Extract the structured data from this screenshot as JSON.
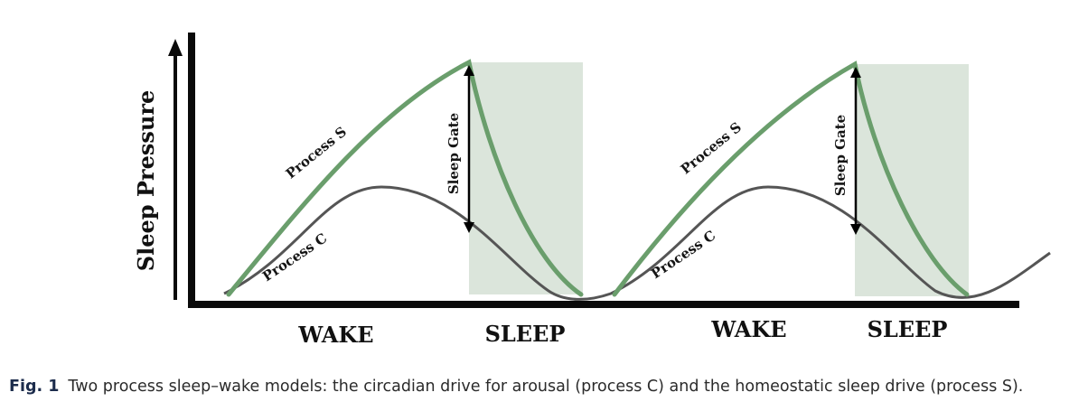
{
  "figure": {
    "y_axis_label": "Sleep Pressure",
    "process_s_label": "Process S",
    "process_c_label": "Process C",
    "sleep_gate_label": "Sleep Gate",
    "phase_labels": [
      "WAKE",
      "SLEEP",
      "WAKE",
      "SLEEP"
    ],
    "colors": {
      "process_s": "#6a9e6c",
      "process_c": "#555555",
      "sleep_shade": "#dbe5db",
      "axis": "#0a0a0a"
    }
  },
  "caption": {
    "label": "Fig. 1",
    "text": "Two process sleep–wake models: the circadian drive for arousal (process C) and the homeostatic sleep drive (process S)."
  }
}
